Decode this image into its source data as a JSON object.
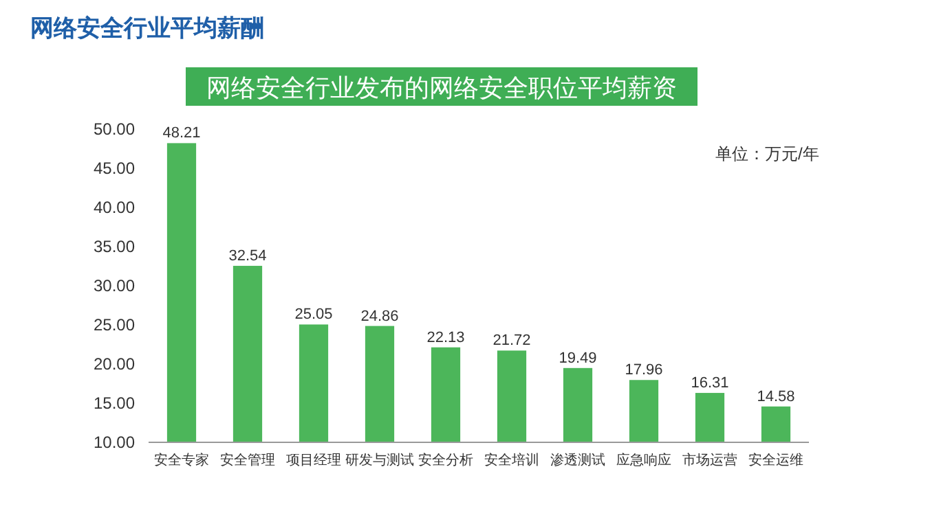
{
  "chart_data": {
    "type": "bar",
    "title": "网络安全行业平均薪酬",
    "subtitle": "网络安全行业发布的网络安全职位平均薪资",
    "annotations": [
      "单位：万元/年"
    ],
    "categories": [
      "安全专家",
      "安全管理",
      "项目经理",
      "研发与测试",
      "安全分析",
      "安全培训",
      "渗透测试",
      "应急响应",
      "市场运营",
      "安全运维"
    ],
    "values": [
      48.21,
      32.54,
      25.05,
      24.86,
      22.13,
      21.72,
      19.49,
      17.96,
      16.31,
      14.58
    ],
    "value_labels": [
      "48.21",
      "32.54",
      "25.05",
      "24.86",
      "22.13",
      "21.72",
      "19.49",
      "17.96",
      "16.31",
      "14.58"
    ],
    "color": "#4cb65a",
    "ylim": [
      10,
      50
    ],
    "yticks": [
      {
        "value": 10,
        "label": "10.00"
      },
      {
        "value": 15,
        "label": "15.00"
      },
      {
        "value": 20,
        "label": "20.00"
      },
      {
        "value": 25,
        "label": "25.00"
      },
      {
        "value": 30,
        "label": "30.00"
      },
      {
        "value": 35,
        "label": "35.00"
      },
      {
        "value": 40,
        "label": "40.00"
      },
      {
        "value": 45,
        "label": "45.00"
      },
      {
        "value": 50,
        "label": "50.00"
      }
    ],
    "grid": false
  }
}
